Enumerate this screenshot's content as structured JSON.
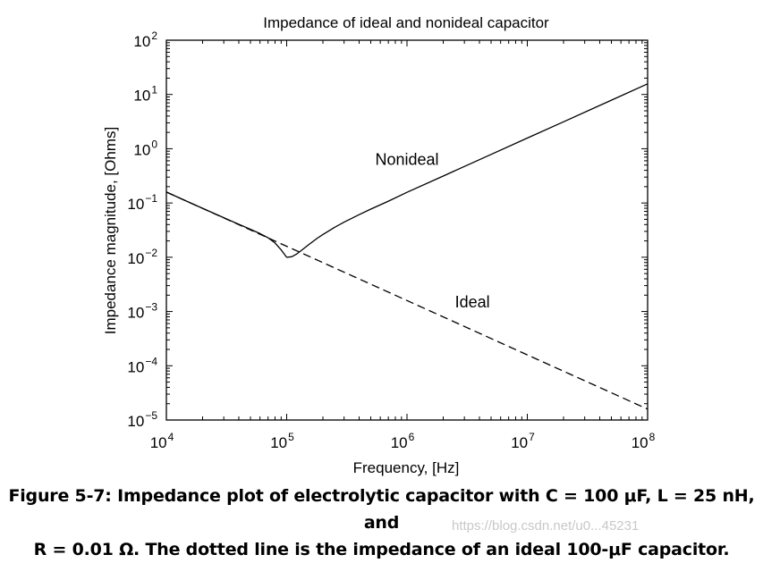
{
  "chart_data": {
    "type": "line",
    "title": "Impedance of ideal and nonideal capacitor",
    "xlabel": "Frequency, [Hz]",
    "ylabel": "Impedance magnitude, [Ohms]",
    "xscale": "log",
    "yscale": "log",
    "xlim": [
      10000,
      100000000
    ],
    "ylim": [
      1e-05,
      100
    ],
    "x_ticks": [
      10000,
      100000,
      1000000,
      10000000,
      100000000
    ],
    "x_tick_labels": [
      {
        "base": "10",
        "exp": "4"
      },
      {
        "base": "10",
        "exp": "5"
      },
      {
        "base": "10",
        "exp": "6"
      },
      {
        "base": "10",
        "exp": "7"
      },
      {
        "base": "10",
        "exp": "8"
      }
    ],
    "y_ticks": [
      1e-05,
      0.0001,
      0.001,
      0.01,
      0.1,
      1,
      10,
      100
    ],
    "y_tick_labels": [
      {
        "base": "10",
        "exp": "−5"
      },
      {
        "base": "10",
        "exp": "−4"
      },
      {
        "base": "10",
        "exp": "−3"
      },
      {
        "base": "10",
        "exp": "−2"
      },
      {
        "base": "10",
        "exp": "−1"
      },
      {
        "base": "10",
        "exp": "0"
      },
      {
        "base": "10",
        "exp": "1"
      },
      {
        "base": "10",
        "exp": "2"
      }
    ],
    "grid": false,
    "series": [
      {
        "name": "Nonideal",
        "style": "solid",
        "color": "#000000",
        "x": [
          10000,
          15000,
          20000,
          30000,
          40000,
          50000,
          60000,
          70000,
          80000,
          90000,
          100000,
          110000,
          120000,
          130000,
          150000,
          180000,
          200000,
          250000,
          300000,
          400000,
          500000,
          700000,
          1000000,
          2000000,
          5000000,
          10000000,
          20000000,
          50000000,
          100000000
        ],
        "y": [
          0.159,
          0.106,
          0.0797,
          0.0536,
          0.0405,
          0.0327,
          0.0273,
          0.0228,
          0.0183,
          0.0137,
          0.01,
          0.0102,
          0.0113,
          0.0129,
          0.0166,
          0.0225,
          0.0263,
          0.0356,
          0.0443,
          0.061,
          0.0771,
          0.108,
          0.157,
          0.314,
          0.785,
          1.57,
          3.14,
          7.85,
          15.7
        ]
      },
      {
        "name": "Ideal",
        "style": "dashed",
        "color": "#000000",
        "x": [
          10000,
          100000,
          1000000,
          10000000,
          100000000
        ],
        "y": [
          0.159,
          0.0159,
          0.00159,
          0.000159,
          1.59e-05
        ]
      }
    ],
    "annotations": [
      {
        "text": "Nonideal",
        "x": 1000000,
        "y": 0.5
      },
      {
        "text": "Ideal",
        "x": 3500000,
        "y": 0.0012
      }
    ]
  },
  "caption": {
    "line1": "Figure 5-7: Impedance plot of electrolytic capacitor with C = 100 μF, L = 25 nH, and",
    "line2": "R = 0.01 Ω. The dotted line is the impedance of an ideal 100-μF capacitor."
  },
  "watermark": "https://blog.csdn.net/u0...45231"
}
